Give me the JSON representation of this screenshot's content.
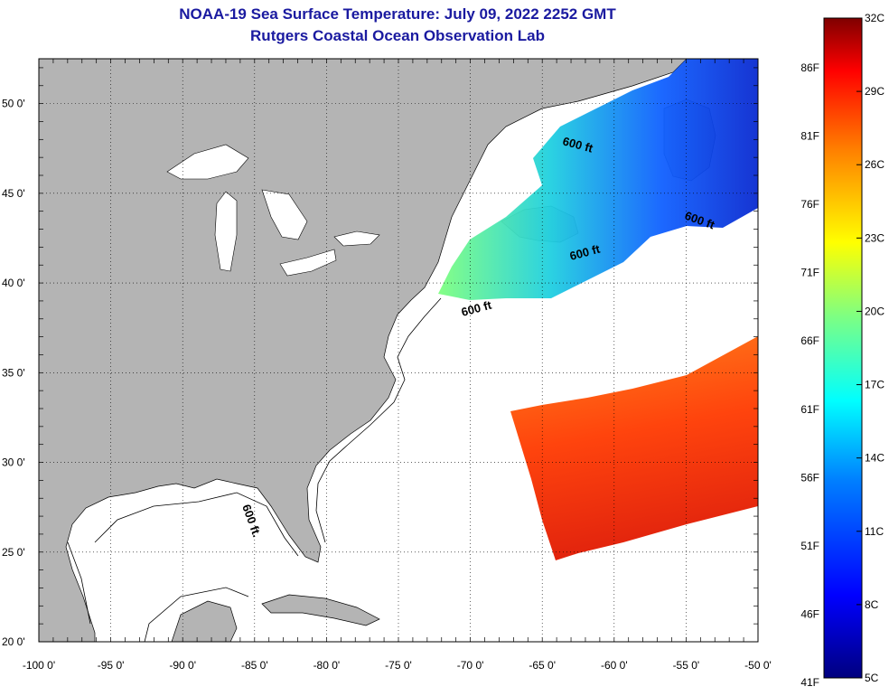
{
  "title_line1": "NOAA-19 Sea Surface Temperature:  July 09, 2022 2252 GMT",
  "title_line2": "Rutgers Coastal Ocean Observation Lab",
  "map": {
    "longitude_ticks": [
      {
        "value": -100,
        "label": "-100 0'"
      },
      {
        "value": -95,
        "label": "-95 0'"
      },
      {
        "value": -90,
        "label": "-90 0'"
      },
      {
        "value": -85,
        "label": "-85 0'"
      },
      {
        "value": -80,
        "label": "-80 0'"
      },
      {
        "value": -75,
        "label": "-75 0'"
      },
      {
        "value": -70,
        "label": "-70 0'"
      },
      {
        "value": -65,
        "label": "-65 0'"
      },
      {
        "value": -60,
        "label": "-60 0'"
      },
      {
        "value": -55,
        "label": "-55 0'"
      },
      {
        "value": -50,
        "label": "-50 0'"
      }
    ],
    "latitude_ticks": [
      {
        "value": 50,
        "label": "50 0'"
      },
      {
        "value": 45,
        "label": "45 0'"
      },
      {
        "value": 40,
        "label": "40 0'"
      },
      {
        "value": 35,
        "label": "35 0'"
      },
      {
        "value": 30,
        "label": "30 0'"
      },
      {
        "value": 25,
        "label": "25 0'"
      },
      {
        "value": 20,
        "label": "20 0'"
      }
    ],
    "lon_range": [
      -100,
      -50
    ],
    "lat_range": [
      20,
      52.5
    ],
    "isobath_label": "600 ft",
    "isobath_label_alt": "600 ft.",
    "land_color": "#b4b4b4",
    "no_data_color": "#ffffff"
  },
  "colorbar": {
    "celsius_labels": [
      "32C",
      "29C",
      "26C",
      "23C",
      "20C",
      "17C",
      "14C",
      "11C",
      "8C",
      "5C"
    ],
    "fahrenheit_labels": [
      "86F",
      "81F",
      "76F",
      "71F",
      "66F",
      "61F",
      "56F",
      "51F",
      "46F",
      "41F"
    ],
    "colors": [
      "#00007f",
      "#0000ff",
      "#0080ff",
      "#00ffff",
      "#80ff80",
      "#ffff00",
      "#ff8000",
      "#ff0000",
      "#7f0000"
    ]
  }
}
